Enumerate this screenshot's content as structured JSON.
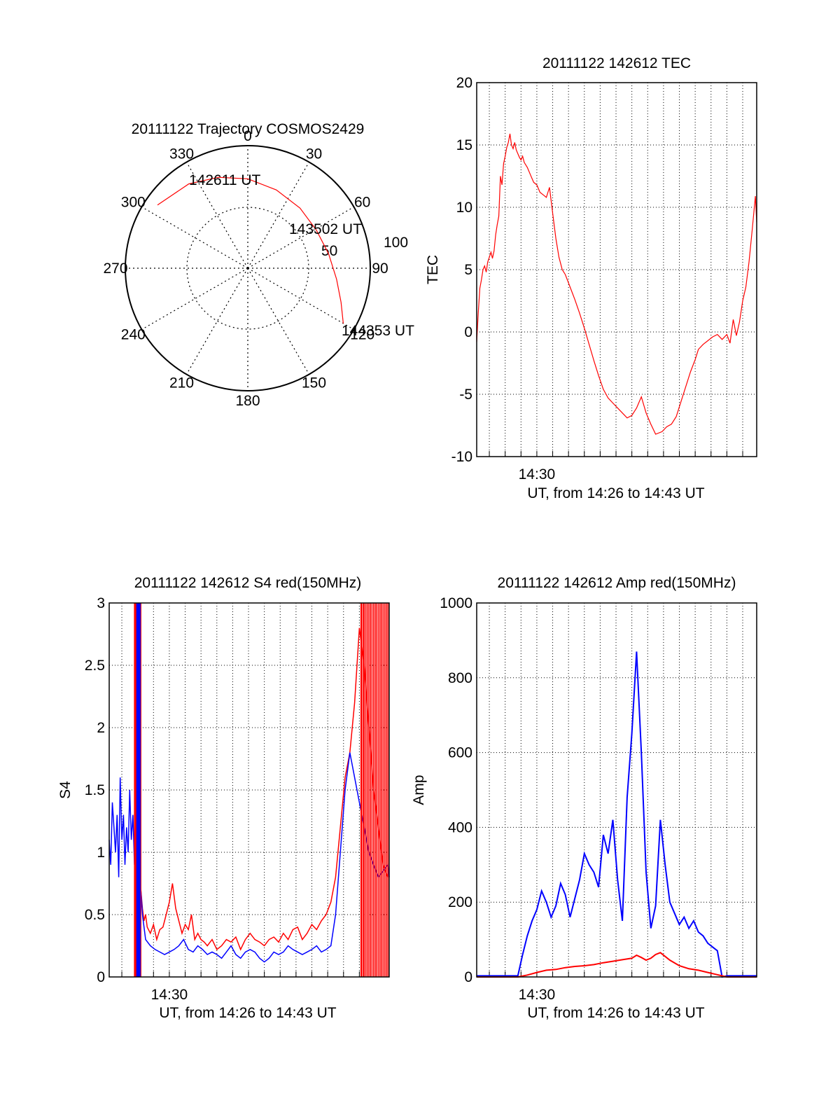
{
  "colors": {
    "red": "#ff0000",
    "blue": "#0000ff",
    "grid": "#000000",
    "axis": "#000000"
  },
  "chart_data": [
    {
      "type": "polar",
      "title": "20111122 Trajectory COSMOS2429",
      "azimuth_labels": [
        "0",
        "30",
        "60",
        "90",
        "120",
        "150",
        "180",
        "210",
        "240",
        "270",
        "300",
        "330"
      ],
      "radial_labels": [
        "50",
        "100"
      ],
      "radial_range_deg": [
        0,
        100
      ],
      "grid": "dotted",
      "track": {
        "color": "red",
        "points_az_elev": [
          [
            305,
            10
          ],
          [
            325,
            16
          ],
          [
            342,
            22
          ],
          [
            0,
            27
          ],
          [
            20,
            32
          ],
          [
            41,
            35
          ],
          [
            61,
            36
          ],
          [
            80,
            33
          ],
          [
            97,
            27
          ],
          [
            110,
            19
          ],
          [
            120,
            10
          ]
        ]
      },
      "annotations": [
        "142611 UT",
        "143502 UT",
        "144353 UT"
      ]
    },
    {
      "type": "line",
      "title": "20111122 142612 TEC",
      "xlabel": "UT, from 14:26 to 14:43 UT",
      "ylabel": "TEC",
      "xlim": [
        14.4367,
        14.7314
      ],
      "ylim": [
        -10,
        20
      ],
      "yticks": [
        "-10",
        "-5",
        "0",
        "5",
        "10",
        "15",
        "20"
      ],
      "xticks": [
        {
          "x": 14.5,
          "label": "14:30"
        }
      ],
      "grid": true,
      "series": [
        {
          "color": "red",
          "x": [
            14.4367,
            14.4383,
            14.44,
            14.4417,
            14.4433,
            14.445,
            14.4467,
            14.4483,
            14.45,
            14.4517,
            14.4533,
            14.455,
            14.4567,
            14.4583,
            14.46,
            14.4617,
            14.4633,
            14.465,
            14.4667,
            14.4683,
            14.47,
            14.4717,
            14.4733,
            14.475,
            14.4767,
            14.4783,
            14.48,
            14.4817,
            14.4833,
            14.485,
            14.4867,
            14.49,
            14.4933,
            14.4967,
            14.5,
            14.5033,
            14.5067,
            14.51,
            14.5133,
            14.5167,
            14.52,
            14.5233,
            14.5267,
            14.53,
            14.535,
            14.54,
            14.545,
            14.55,
            14.555,
            14.56,
            14.565,
            14.57,
            14.575,
            14.58,
            14.585,
            14.59,
            14.595,
            14.6,
            14.605,
            14.61,
            14.615,
            14.62,
            14.625,
            14.6317,
            14.6367,
            14.6417,
            14.6467,
            14.6517,
            14.6567,
            14.6617,
            14.6667,
            14.67,
            14.675,
            14.68,
            14.685,
            14.69,
            14.695,
            14.7,
            14.7033,
            14.7067,
            14.71,
            14.7133,
            14.7167,
            14.72,
            14.7233,
            14.7267,
            14.73,
            14.7314
          ],
          "y": [
            -0.8,
            1.5,
            3.5,
            4.2,
            5.0,
            5.3,
            4.8,
            5.6,
            6.0,
            6.4,
            5.9,
            6.5,
            7.8,
            8.6,
            9.3,
            12.5,
            11.8,
            13.5,
            14.1,
            14.8,
            15.2,
            15.9,
            15.0,
            14.7,
            15.2,
            14.6,
            14.3,
            14.0,
            13.8,
            14.1,
            13.6,
            13.2,
            12.6,
            12.0,
            11.8,
            11.2,
            11.0,
            10.8,
            11.6,
            9.5,
            7.5,
            6.0,
            5.0,
            4.6,
            3.6,
            2.6,
            1.5,
            0.3,
            -1.0,
            -2.3,
            -3.5,
            -4.6,
            -5.3,
            -5.7,
            -6.1,
            -6.5,
            -6.9,
            -6.7,
            -6.1,
            -5.2,
            -6.5,
            -7.4,
            -8.2,
            -8.0,
            -7.6,
            -7.4,
            -6.8,
            -5.6,
            -4.4,
            -3.2,
            -2.2,
            -1.4,
            -1.0,
            -0.7,
            -0.4,
            -0.2,
            -0.6,
            -0.2,
            -0.9,
            1.0,
            -0.3,
            0.8,
            2.5,
            3.6,
            5.6,
            8.2,
            10.9,
            8.8
          ]
        }
      ]
    },
    {
      "type": "line",
      "title": "20111122 142612 S4 red(150MHz)",
      "xlabel": "UT, from 14:26 to 14:43 UT",
      "ylabel": "S4",
      "xlim": [
        14.4367,
        14.7314
      ],
      "ylim": [
        0,
        3
      ],
      "yticks": [
        "0",
        "0.5",
        "1",
        "1.5",
        "2",
        "2.5",
        "3"
      ],
      "xticks": [
        {
          "x": 14.5,
          "label": "14:30"
        }
      ],
      "grid": true,
      "series": [
        {
          "color": "red",
          "x": [
            14.47,
            14.4717,
            14.4733,
            14.475,
            14.4767,
            14.48,
            14.4833,
            14.4867,
            14.49,
            14.4933,
            14.4967,
            14.5,
            14.5033,
            14.5067,
            14.51,
            14.5133,
            14.5167,
            14.52,
            14.5233,
            14.5267,
            14.53,
            14.5333,
            14.5367,
            14.54,
            14.545,
            14.55,
            14.555,
            14.56,
            14.565,
            14.57,
            14.575,
            14.58,
            14.585,
            14.59,
            14.595,
            14.6,
            14.605,
            14.61,
            14.615,
            14.62,
            14.625,
            14.63,
            14.635,
            14.64,
            14.645,
            14.65,
            14.655,
            14.66,
            14.665,
            14.67,
            14.675,
            14.68,
            14.685,
            14.69,
            14.695,
            14.7,
            14.705,
            14.71,
            14.715,
            14.72,
            14.725,
            14.73
          ],
          "y": [
            0.7,
            0.55,
            0.45,
            0.5,
            0.4,
            0.35,
            0.42,
            0.3,
            0.38,
            0.4,
            0.5,
            0.6,
            0.75,
            0.55,
            0.45,
            0.35,
            0.42,
            0.38,
            0.5,
            0.3,
            0.35,
            0.3,
            0.28,
            0.25,
            0.3,
            0.22,
            0.25,
            0.3,
            0.28,
            0.32,
            0.22,
            0.3,
            0.35,
            0.3,
            0.28,
            0.25,
            0.3,
            0.32,
            0.28,
            0.35,
            0.3,
            0.38,
            0.4,
            0.3,
            0.35,
            0.42,
            0.38,
            0.45,
            0.5,
            0.6,
            0.8,
            1.2,
            1.6,
            1.8,
            2.2,
            2.8,
            2.5,
            2.0,
            1.5,
            1.2,
            0.9,
            0.8
          ]
        },
        {
          "color": "blue",
          "x": [
            14.4367,
            14.4383,
            14.44,
            14.4417,
            14.4433,
            14.445,
            14.4467,
            14.4483,
            14.45,
            14.4517,
            14.4533,
            14.455,
            14.4567,
            14.4583,
            14.46,
            14.4617,
            14.4633,
            14.465,
            14.4667,
            14.4683,
            14.47,
            14.4717,
            14.475,
            14.48,
            14.485,
            14.49,
            14.495,
            14.5,
            14.505,
            14.51,
            14.515,
            14.52,
            14.525,
            14.53,
            14.535,
            14.54,
            14.545,
            14.55,
            14.555,
            14.56,
            14.565,
            14.57,
            14.575,
            14.58,
            14.585,
            14.59,
            14.595,
            14.6,
            14.605,
            14.61,
            14.615,
            14.62,
            14.625,
            14.63,
            14.635,
            14.64,
            14.645,
            14.65,
            14.655,
            14.66,
            14.665,
            14.67,
            14.675,
            14.68,
            14.685,
            14.69,
            14.695,
            14.7,
            14.705,
            14.71,
            14.715,
            14.72,
            14.725,
            14.73,
            14.7314
          ],
          "y": [
            1.1,
            0.9,
            1.4,
            1.2,
            1.0,
            1.3,
            0.8,
            1.6,
            1.1,
            1.3,
            0.9,
            1.2,
            1.0,
            1.5,
            1.1,
            1.3,
            0.9,
            1.2,
            1.0,
            0.8,
            0.7,
            0.5,
            0.3,
            0.25,
            0.22,
            0.2,
            0.18,
            0.2,
            0.22,
            0.25,
            0.3,
            0.22,
            0.2,
            0.25,
            0.22,
            0.18,
            0.2,
            0.18,
            0.15,
            0.2,
            0.25,
            0.18,
            0.15,
            0.2,
            0.22,
            0.2,
            0.15,
            0.12,
            0.15,
            0.2,
            0.18,
            0.2,
            0.25,
            0.22,
            0.2,
            0.18,
            0.2,
            0.22,
            0.25,
            0.2,
            0.22,
            0.25,
            0.5,
            1.0,
            1.5,
            1.8,
            1.6,
            1.4,
            1.2,
            1.0,
            0.9,
            0.8,
            0.85,
            0.9,
            0.8
          ]
        }
      ]
    },
    {
      "type": "line",
      "title": "20111122 142612 Amp red(150MHz)",
      "xlabel": "UT, from 14:26 to 14:43 UT",
      "ylabel": "Amp",
      "xlim": [
        14.4367,
        14.7314
      ],
      "ylim": [
        0,
        1000
      ],
      "yticks": [
        "0",
        "200",
        "400",
        "600",
        "800",
        "1000"
      ],
      "xticks": [
        {
          "x": 14.5,
          "label": "14:30"
        }
      ],
      "grid": true,
      "series": [
        {
          "color": "blue",
          "x": [
            14.4367,
            14.45,
            14.46,
            14.47,
            14.48,
            14.485,
            14.49,
            14.495,
            14.5,
            14.505,
            14.51,
            14.515,
            14.52,
            14.525,
            14.53,
            14.535,
            14.54,
            14.545,
            14.55,
            14.555,
            14.56,
            14.565,
            14.57,
            14.575,
            14.58,
            14.585,
            14.59,
            14.595,
            14.6,
            14.605,
            14.61,
            14.615,
            14.62,
            14.625,
            14.63,
            14.635,
            14.64,
            14.645,
            14.65,
            14.655,
            14.66,
            14.665,
            14.67,
            14.675,
            14.68,
            14.685,
            14.69,
            14.695,
            14.7,
            14.7314
          ],
          "y": [
            3,
            3,
            3,
            3,
            3,
            60,
            110,
            150,
            180,
            230,
            200,
            160,
            190,
            250,
            220,
            160,
            210,
            260,
            330,
            300,
            280,
            240,
            380,
            330,
            420,
            260,
            150,
            480,
            650,
            870,
            600,
            280,
            130,
            190,
            420,
            300,
            200,
            170,
            140,
            160,
            130,
            150,
            120,
            110,
            90,
            80,
            70,
            0,
            3,
            3
          ]
        },
        {
          "color": "red",
          "x": [
            14.4367,
            14.48,
            14.49,
            14.5,
            14.51,
            14.52,
            14.53,
            14.54,
            14.55,
            14.56,
            14.57,
            14.58,
            14.59,
            14.6,
            14.605,
            14.61,
            14.615,
            14.62,
            14.625,
            14.63,
            14.64,
            14.65,
            14.66,
            14.67,
            14.68,
            14.69,
            14.7,
            14.7314
          ],
          "y": [
            0,
            0,
            5,
            12,
            18,
            20,
            25,
            28,
            30,
            33,
            38,
            42,
            46,
            50,
            58,
            52,
            45,
            50,
            60,
            65,
            45,
            30,
            22,
            18,
            12,
            6,
            0,
            0
          ]
        }
      ]
    }
  ]
}
